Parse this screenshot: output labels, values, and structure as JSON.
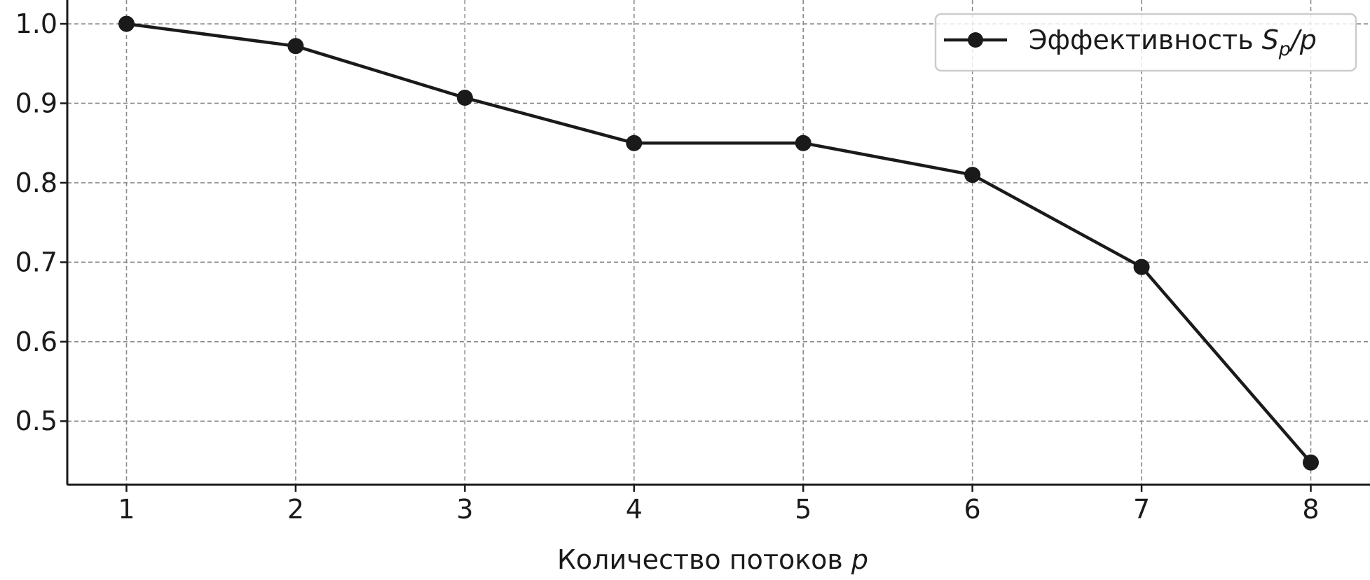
{
  "chart_data": {
    "type": "line",
    "title": "",
    "xlabel": "Количество потоков",
    "xlabel_var": "p",
    "ylabel": "",
    "x": [
      1,
      2,
      3,
      4,
      5,
      6,
      7,
      8
    ],
    "series": [
      {
        "name": "Эффективность Sp/p",
        "legend_prefix": "Эффективность ",
        "legend_symbol": "S",
        "legend_subscript": "p",
        "legend_suffix": "/p",
        "values": [
          1.0,
          0.972,
          0.907,
          0.85,
          0.85,
          0.81,
          0.694,
          0.448
        ],
        "color": "#1a1a1a",
        "marker": "circle"
      }
    ],
    "xticks": [
      "1",
      "2",
      "3",
      "4",
      "5",
      "6",
      "7",
      "8"
    ],
    "yticks": [
      "0.5",
      "0.6",
      "0.7",
      "0.8",
      "0.9",
      "1.0"
    ],
    "xlim": [
      0.65,
      8.35
    ],
    "ylim": [
      0.42,
      1.03
    ],
    "grid": true,
    "legend_position": "top-right"
  }
}
